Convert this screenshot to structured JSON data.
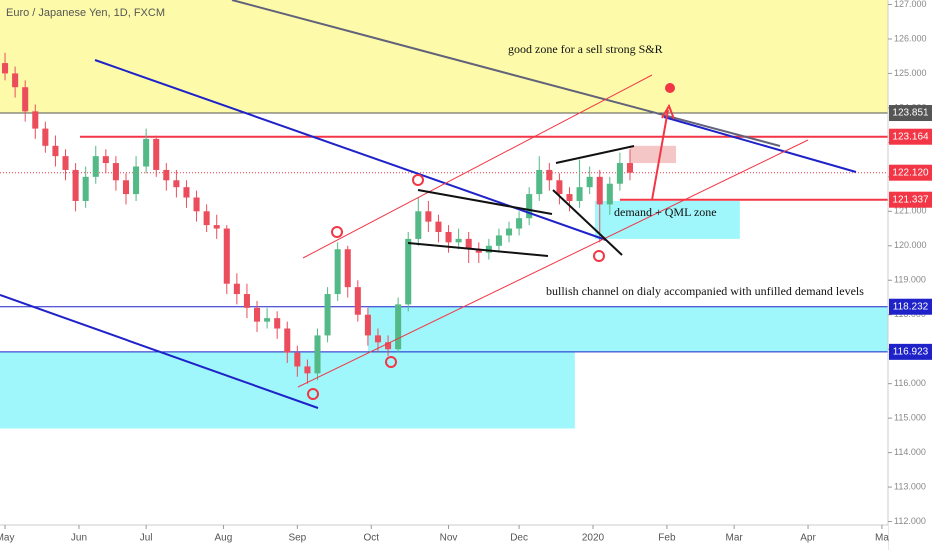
{
  "chart_data": {
    "type": "candlestick",
    "title": "Euro / Japanese Yen, 1D, FXCM",
    "x": [
      0,
      3,
      6,
      9,
      12,
      15,
      18,
      21,
      24,
      27,
      30,
      33,
      36,
      39,
      42,
      45,
      48,
      51,
      54,
      57,
      60,
      63,
      66,
      69,
      72,
      75,
      78,
      81,
      84,
      87,
      90,
      93,
      96,
      99,
      102,
      105,
      108,
      111,
      114,
      117,
      120,
      123,
      126,
      129,
      132,
      135,
      138,
      141,
      144,
      147,
      150,
      153,
      156,
      159,
      162,
      165,
      168,
      171,
      174,
      177,
      180,
      183,
      186
    ],
    "open": [
      125.3,
      125.0,
      124.6,
      123.9,
      123.4,
      122.9,
      122.6,
      122.2,
      121.3,
      122.0,
      122.6,
      122.4,
      121.9,
      121.5,
      122.3,
      123.1,
      122.2,
      121.9,
      121.7,
      121.4,
      121.0,
      120.6,
      120.5,
      118.9,
      118.6,
      118.2,
      117.8,
      117.9,
      117.6,
      116.9,
      116.5,
      116.3,
      117.4,
      118.6,
      119.9,
      118.8,
      118.0,
      117.4,
      117.2,
      117.0,
      118.3,
      120.2,
      121.0,
      120.7,
      120.4,
      120.1,
      120.2,
      119.9,
      119.8,
      120.0,
      120.3,
      120.5,
      120.8,
      121.5,
      122.2,
      121.9,
      121.5,
      121.3,
      121.7,
      122.0,
      121.2,
      121.8,
      122.4
    ],
    "high": [
      125.6,
      125.2,
      124.8,
      124.1,
      123.6,
      123.2,
      122.8,
      122.4,
      122.3,
      122.9,
      122.8,
      122.6,
      122.1,
      122.6,
      123.4,
      123.2,
      122.4,
      122.2,
      121.9,
      121.6,
      121.2,
      120.9,
      120.6,
      119.2,
      118.9,
      118.4,
      118.2,
      118.1,
      117.8,
      117.1,
      116.7,
      117.6,
      118.8,
      120.1,
      120.0,
      119.0,
      118.2,
      117.6,
      117.4,
      118.5,
      120.4,
      121.4,
      121.3,
      120.9,
      120.6,
      120.5,
      120.4,
      120.1,
      120.2,
      120.5,
      120.7,
      121.0,
      121.7,
      122.6,
      122.4,
      122.1,
      121.7,
      122.5,
      122.3,
      122.2,
      122.0,
      122.7,
      122.8
    ],
    "low": [
      124.8,
      124.3,
      123.6,
      123.1,
      122.7,
      122.3,
      121.9,
      121.0,
      121.1,
      121.8,
      122.1,
      121.6,
      121.2,
      121.3,
      122.1,
      122.0,
      121.6,
      121.4,
      121.1,
      120.7,
      120.4,
      120.2,
      118.6,
      118.3,
      117.9,
      117.5,
      117.6,
      117.3,
      116.6,
      116.2,
      116.0,
      116.1,
      117.2,
      118.4,
      118.5,
      117.8,
      117.1,
      116.9,
      116.8,
      116.9,
      118.1,
      120.0,
      120.4,
      120.1,
      119.8,
      119.9,
      119.5,
      119.5,
      119.6,
      119.8,
      120.1,
      120.3,
      120.6,
      121.3,
      121.6,
      121.2,
      121.0,
      121.1,
      121.5,
      120.1,
      120.9,
      121.6,
      121.9
    ],
    "close": [
      125.0,
      124.6,
      123.9,
      123.4,
      122.9,
      122.6,
      122.2,
      121.3,
      122.0,
      122.6,
      122.4,
      121.9,
      121.5,
      122.3,
      123.1,
      122.2,
      121.9,
      121.7,
      121.4,
      121.0,
      120.6,
      120.5,
      118.9,
      118.6,
      118.2,
      117.8,
      117.9,
      117.6,
      116.9,
      116.5,
      116.3,
      117.4,
      118.6,
      119.9,
      118.8,
      118.0,
      117.4,
      117.2,
      117.0,
      118.3,
      120.2,
      121.0,
      120.7,
      120.4,
      120.1,
      120.2,
      119.9,
      119.8,
      120.0,
      120.3,
      120.5,
      120.8,
      121.5,
      122.2,
      121.9,
      121.5,
      121.3,
      121.7,
      122.0,
      121.2,
      121.8,
      122.4,
      122.12
    ],
    "up_color": "#53b987",
    "down_color": "#eb4d5c",
    "xlim": [
      -1.5,
      262.8
    ],
    "xticks": [
      {
        "value": 0,
        "label": "May"
      },
      {
        "value": 22,
        "label": "Jun"
      },
      {
        "value": 42,
        "label": "Jul"
      },
      {
        "value": 65,
        "label": "Aug"
      },
      {
        "value": 87,
        "label": "Sep"
      },
      {
        "value": 109,
        "label": "Oct"
      },
      {
        "value": 132,
        "label": "Nov"
      },
      {
        "value": 153,
        "label": "Dec"
      },
      {
        "value": 175,
        "label": "2020"
      },
      {
        "value": 197,
        "label": "Feb"
      },
      {
        "value": 217,
        "label": "Mar"
      },
      {
        "value": 239,
        "label": "Apr"
      },
      {
        "value": 261,
        "label": "Ma"
      }
    ],
    "ylim": [
      111.9,
      127.13
    ],
    "yticks": [
      {
        "value": 127,
        "label": "127.000"
      },
      {
        "value": 126,
        "label": "126.000"
      },
      {
        "value": 125,
        "label": "125.000"
      },
      {
        "value": 124,
        "label": "124.000"
      },
      {
        "value": 123,
        "label": "123.000"
      },
      {
        "value": 122,
        "label": "122.000"
      },
      {
        "value": 121,
        "label": "121.000"
      },
      {
        "value": 120,
        "label": "120.000"
      },
      {
        "value": 119,
        "label": "119.000"
      },
      {
        "value": 118,
        "label": "118.000"
      },
      {
        "value": 117,
        "label": "117.000"
      },
      {
        "value": 116,
        "label": "116.000"
      },
      {
        "value": 115,
        "label": "115.000"
      },
      {
        "value": 114,
        "label": "114.000"
      },
      {
        "value": 113,
        "label": "113.000"
      },
      {
        "value": 112,
        "label": "112.000"
      }
    ],
    "zones": [
      {
        "x": [
          -1.5,
          262.8
        ],
        "y": [
          123.851,
          127.13
        ],
        "color": "#fdfbaa"
      },
      {
        "x": [
          108,
          262.8
        ],
        "y": [
          116.923,
          118.232
        ],
        "color": "#9ff7fb"
      },
      {
        "x": [
          -1.5,
          169.6
        ],
        "y": [
          114.7,
          116.923
        ],
        "color": "#9ff7fb"
      },
      {
        "x": [
          175.6,
          218.7
        ],
        "y": [
          120.2,
          121.3
        ],
        "color": "#9ff7fb"
      },
      {
        "x": [
          186,
          199.7
        ],
        "y": [
          122.4,
          122.9
        ],
        "color": "#f5c6c6"
      }
    ],
    "levels": [
      {
        "value": 123.851,
        "color": "#555555",
        "from": -1.5
      },
      {
        "value": 123.164,
        "color": "#f23645",
        "from": 22.3
      },
      {
        "value": {
          "value": 122.12,
          "label": "122.120"
        },
        "color": "#f23645",
        "from": -1.5,
        "dotted": true
      },
      {
        "value": 121.337,
        "color": "#f23645",
        "from": 183
      },
      {
        "value": 118.232,
        "color": "#1e22c8",
        "from": -1.5
      },
      {
        "value": 116.923,
        "color": "#1e22c8",
        "from": -1.5
      }
    ],
    "annotations": [
      "good zone for a sell strong S&R",
      "demand + QML zone",
      "bullish channel on dialy accompanied with unfilled demand levels"
    ]
  }
}
